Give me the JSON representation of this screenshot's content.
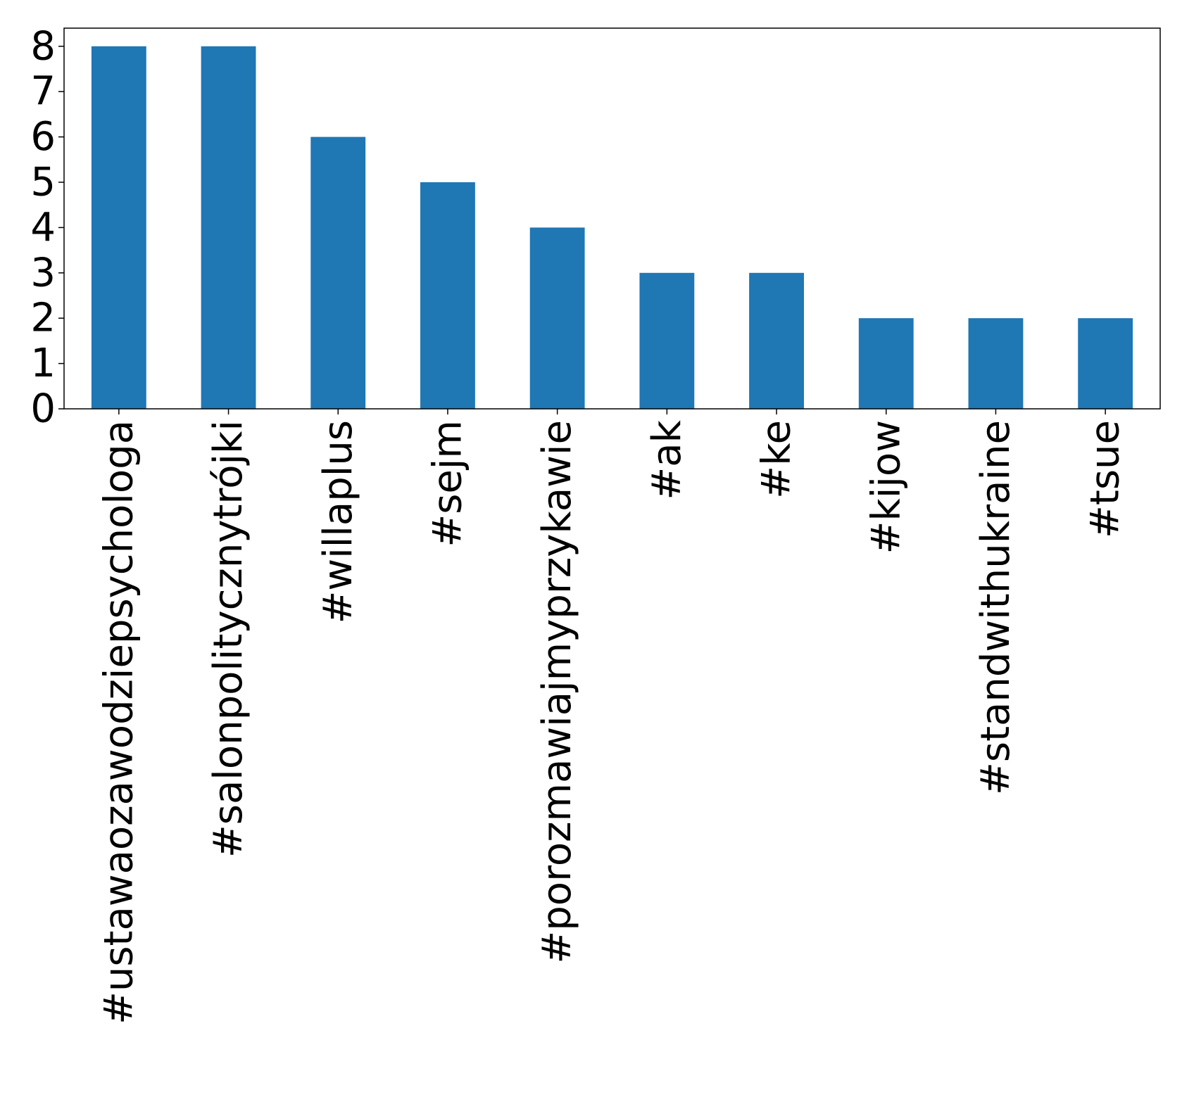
{
  "chart_data": {
    "type": "bar",
    "title": "",
    "xlabel": "",
    "ylabel": "",
    "categories": [
      "#ustawaozawodziepsychologa",
      "#salonpolitycznytrójki",
      "#willaplus",
      "#sejm",
      "#porozmawiajmyprzykawie",
      "#ak",
      "#ke",
      "#kijow",
      "#standwithukraine",
      "#tsue"
    ],
    "values": [
      8,
      8,
      6,
      5,
      4,
      3,
      3,
      2,
      2,
      2
    ],
    "ylim": [
      0,
      8.4
    ],
    "yticks": [
      0,
      1,
      2,
      3,
      4,
      5,
      6,
      7,
      8
    ],
    "grid": false,
    "legend": "none",
    "bar_color": "#1f77b4",
    "axis_color": "#000000"
  }
}
